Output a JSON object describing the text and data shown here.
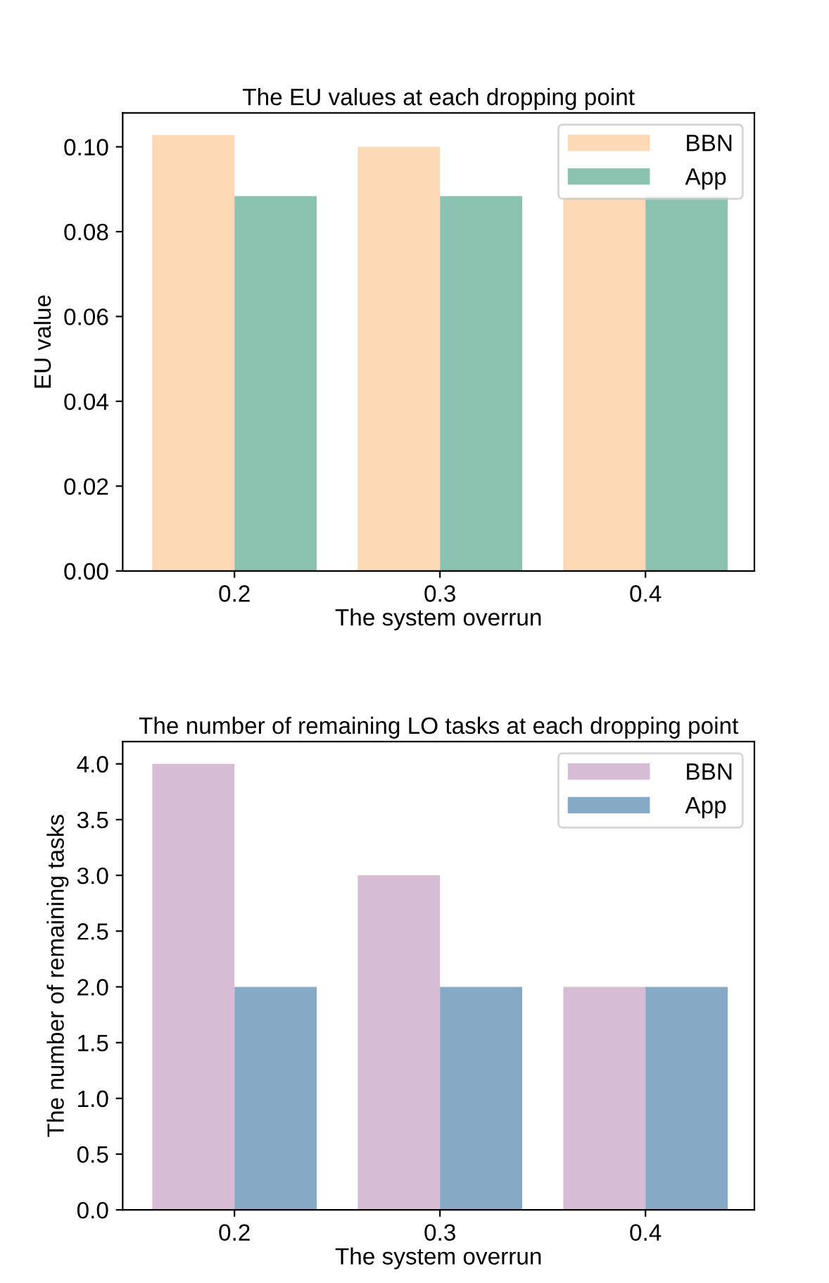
{
  "chart_data": [
    {
      "type": "bar",
      "title": "The EU values at each dropping point",
      "xlabel": "The system overrun",
      "ylabel": "EU value",
      "categories": [
        "0.2",
        "0.3",
        "0.4"
      ],
      "series": [
        {
          "name": "BBN",
          "color": "#fdd9b6",
          "values": [
            0.1028,
            0.1,
            0.0884
          ]
        },
        {
          "name": "App",
          "color": "#8bc3b0",
          "values": [
            0.0884,
            0.0884,
            0.0884
          ]
        }
      ],
      "ylim": [
        0,
        0.108
      ],
      "yticks": [
        {
          "value": 0,
          "label": "0.00"
        },
        {
          "value": 0.02,
          "label": "0.02"
        },
        {
          "value": 0.04,
          "label": "0.04"
        },
        {
          "value": 0.06,
          "label": "0.06"
        },
        {
          "value": 0.08,
          "label": "0.08"
        },
        {
          "value": 0.1,
          "label": "0.10"
        }
      ],
      "legend": "top right"
    },
    {
      "type": "bar",
      "title": "The number of remaining LO tasks at each dropping point",
      "xlabel": "The system overrun",
      "ylabel": "The number of remaining tasks",
      "categories": [
        "0.2",
        "0.3",
        "0.4"
      ],
      "series": [
        {
          "name": "BBN",
          "color": "#d7bcd6",
          "values": [
            4,
            3,
            2
          ]
        },
        {
          "name": "App",
          "color": "#86a9c5",
          "values": [
            2,
            2,
            2
          ]
        }
      ],
      "ylim": [
        0,
        4.2
      ],
      "yticks": [
        {
          "value": 0,
          "label": "0.0"
        },
        {
          "value": 0.5,
          "label": "0.5"
        },
        {
          "value": 1,
          "label": "1.0"
        },
        {
          "value": 1.5,
          "label": "1.5"
        },
        {
          "value": 2,
          "label": "2.0"
        },
        {
          "value": 2.5,
          "label": "2.5"
        },
        {
          "value": 3,
          "label": "3.0"
        },
        {
          "value": 3.5,
          "label": "3.5"
        },
        {
          "value": 4,
          "label": "4.0"
        }
      ],
      "legend": "top right"
    }
  ]
}
